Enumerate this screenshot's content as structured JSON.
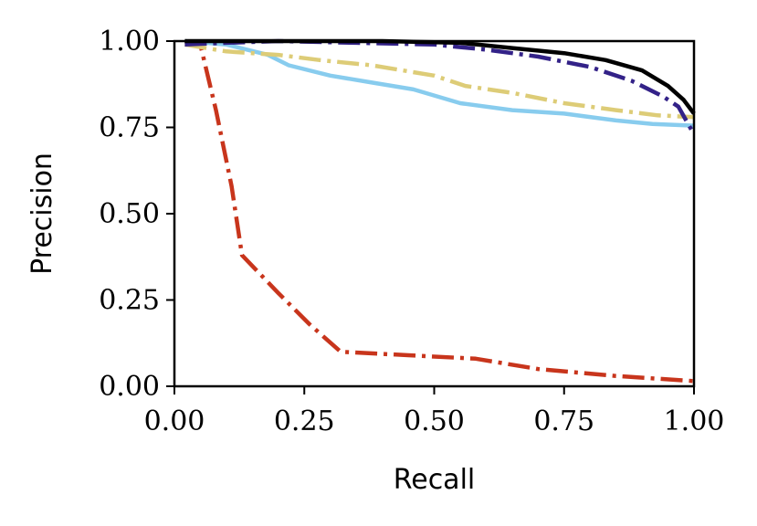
{
  "chart_data": {
    "type": "line",
    "xlabel": "Recall",
    "ylabel": "Precision",
    "xlim": [
      0,
      1
    ],
    "ylim": [
      0,
      1
    ],
    "grid": false,
    "xticks": [
      0,
      0.25,
      0.5,
      0.75,
      1
    ],
    "xtick_labels": [
      "0.00",
      "0.25",
      "0.50",
      "0.75",
      "1.00"
    ],
    "yticks": [
      0,
      0.25,
      0.5,
      0.75,
      1
    ],
    "ytick_labels": [
      "0.00",
      "0.25",
      "0.50",
      "0.75",
      "1.00"
    ],
    "series": [
      {
        "color": "#c8351c",
        "dash": "dashdot",
        "points": [
          [
            0.02,
            1.0
          ],
          [
            0.05,
            0.99
          ],
          [
            0.08,
            0.8
          ],
          [
            0.11,
            0.58
          ],
          [
            0.13,
            0.38
          ],
          [
            0.2,
            0.27
          ],
          [
            0.26,
            0.18
          ],
          [
            0.32,
            0.1
          ],
          [
            0.45,
            0.09
          ],
          [
            0.58,
            0.08
          ],
          [
            0.7,
            0.05
          ],
          [
            0.85,
            0.03
          ],
          [
            1.0,
            0.015
          ]
        ]
      },
      {
        "color": "#88ccee",
        "dash": "solid",
        "points": [
          [
            0.02,
            1.0
          ],
          [
            0.1,
            0.99
          ],
          [
            0.18,
            0.96
          ],
          [
            0.22,
            0.93
          ],
          [
            0.3,
            0.9
          ],
          [
            0.38,
            0.88
          ],
          [
            0.46,
            0.86
          ],
          [
            0.55,
            0.82
          ],
          [
            0.65,
            0.8
          ],
          [
            0.75,
            0.79
          ],
          [
            0.85,
            0.77
          ],
          [
            0.92,
            0.76
          ],
          [
            1.0,
            0.755
          ]
        ]
      },
      {
        "color": "#ddcc77",
        "dash": "dashdot",
        "points": [
          [
            0.02,
            0.99
          ],
          [
            0.1,
            0.97
          ],
          [
            0.15,
            0.965
          ],
          [
            0.2,
            0.96
          ],
          [
            0.28,
            0.945
          ],
          [
            0.38,
            0.93
          ],
          [
            0.5,
            0.9
          ],
          [
            0.56,
            0.87
          ],
          [
            0.65,
            0.85
          ],
          [
            0.75,
            0.82
          ],
          [
            0.85,
            0.8
          ],
          [
            0.93,
            0.785
          ],
          [
            1.0,
            0.78
          ]
        ]
      },
      {
        "color": "#332288",
        "dash": "dashdot",
        "points": [
          [
            0.02,
            0.99
          ],
          [
            0.1,
            0.995
          ],
          [
            0.2,
            1.0
          ],
          [
            0.35,
            0.995
          ],
          [
            0.5,
            0.99
          ],
          [
            0.6,
            0.975
          ],
          [
            0.7,
            0.955
          ],
          [
            0.8,
            0.925
          ],
          [
            0.88,
            0.885
          ],
          [
            0.94,
            0.84
          ],
          [
            0.97,
            0.81
          ],
          [
            1.0,
            0.73
          ]
        ]
      },
      {
        "color": "#000000",
        "dash": "solid",
        "points": [
          [
            0.02,
            1.0
          ],
          [
            0.2,
            1.0
          ],
          [
            0.4,
            1.0
          ],
          [
            0.55,
            0.995
          ],
          [
            0.65,
            0.98
          ],
          [
            0.75,
            0.965
          ],
          [
            0.83,
            0.945
          ],
          [
            0.9,
            0.915
          ],
          [
            0.95,
            0.87
          ],
          [
            0.98,
            0.83
          ],
          [
            1.0,
            0.79
          ]
        ]
      }
    ]
  }
}
